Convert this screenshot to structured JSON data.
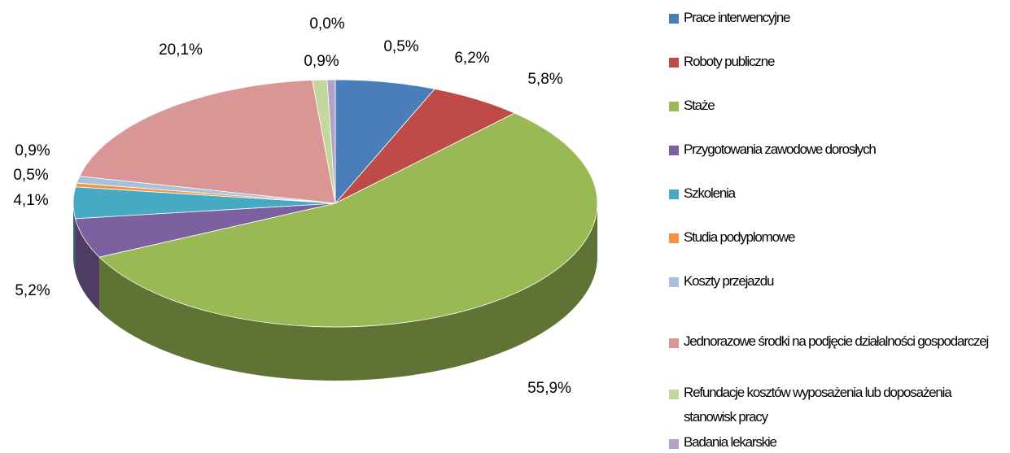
{
  "chart_data": {
    "type": "pie3d",
    "categories": [
      "Prace interwencyjne",
      "Roboty publiczne",
      "Staże",
      "Przygotowania zawodowe dorosłych",
      "Szkolenia",
      "Studia podyplomowe",
      "Koszty przejazdu",
      "Jednorazowe środki na podjęcie działalności gospodarczej",
      "Refundacje kosztów wyposażenia lub doposażenia stanowisk pracy",
      "Badania lekarskie",
      null
    ],
    "values": [
      6.2,
      5.8,
      55.9,
      5.2,
      4.1,
      0.5,
      0.9,
      20.1,
      0.9,
      0.5,
      0.0
    ],
    "value_labels": [
      "6,2%",
      "5,8%",
      "55,9%",
      "5,2%",
      "4,1%",
      "0,5%",
      "0,9%",
      "20,1%",
      "0,9%",
      "0,5%",
      "0,0%"
    ],
    "colors": [
      "#4a7ebb",
      "#be4b48",
      "#98b954",
      "#7d60a0",
      "#46aac5",
      "#f69240",
      "#a7c0de",
      "#da9694",
      "#c3d69b",
      "#b3a2c7",
      "#93cddd"
    ],
    "legend": "right"
  }
}
